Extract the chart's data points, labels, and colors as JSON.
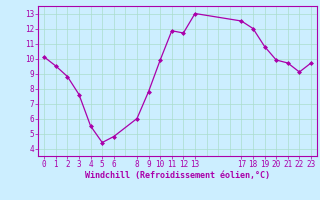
{
  "x": [
    0,
    1,
    2,
    3,
    4,
    5,
    6,
    8,
    9,
    10,
    11,
    12,
    13,
    17,
    18,
    19,
    20,
    21,
    22,
    23
  ],
  "y": [
    10.1,
    9.5,
    8.8,
    7.6,
    5.5,
    4.4,
    4.8,
    6.0,
    7.8,
    9.9,
    11.85,
    11.7,
    13.0,
    12.5,
    12.0,
    10.8,
    9.9,
    9.7,
    9.1,
    9.7
  ],
  "xticks": [
    0,
    1,
    2,
    3,
    4,
    5,
    6,
    8,
    9,
    10,
    11,
    12,
    13,
    17,
    18,
    19,
    20,
    21,
    22,
    23
  ],
  "yticks": [
    4,
    5,
    6,
    7,
    8,
    9,
    10,
    11,
    12,
    13
  ],
  "ylim": [
    3.5,
    13.5
  ],
  "xlim": [
    -0.5,
    23.5
  ],
  "xlabel": "Windchill (Refroidissement éolien,°C)",
  "line_color": "#aa00aa",
  "marker": "D",
  "markersize": 2,
  "bg_color": "#cceeff",
  "grid_color": "#aaddcc",
  "xlabel_color": "#aa00aa",
  "tick_color": "#aa00aa",
  "spine_color": "#aa00aa"
}
